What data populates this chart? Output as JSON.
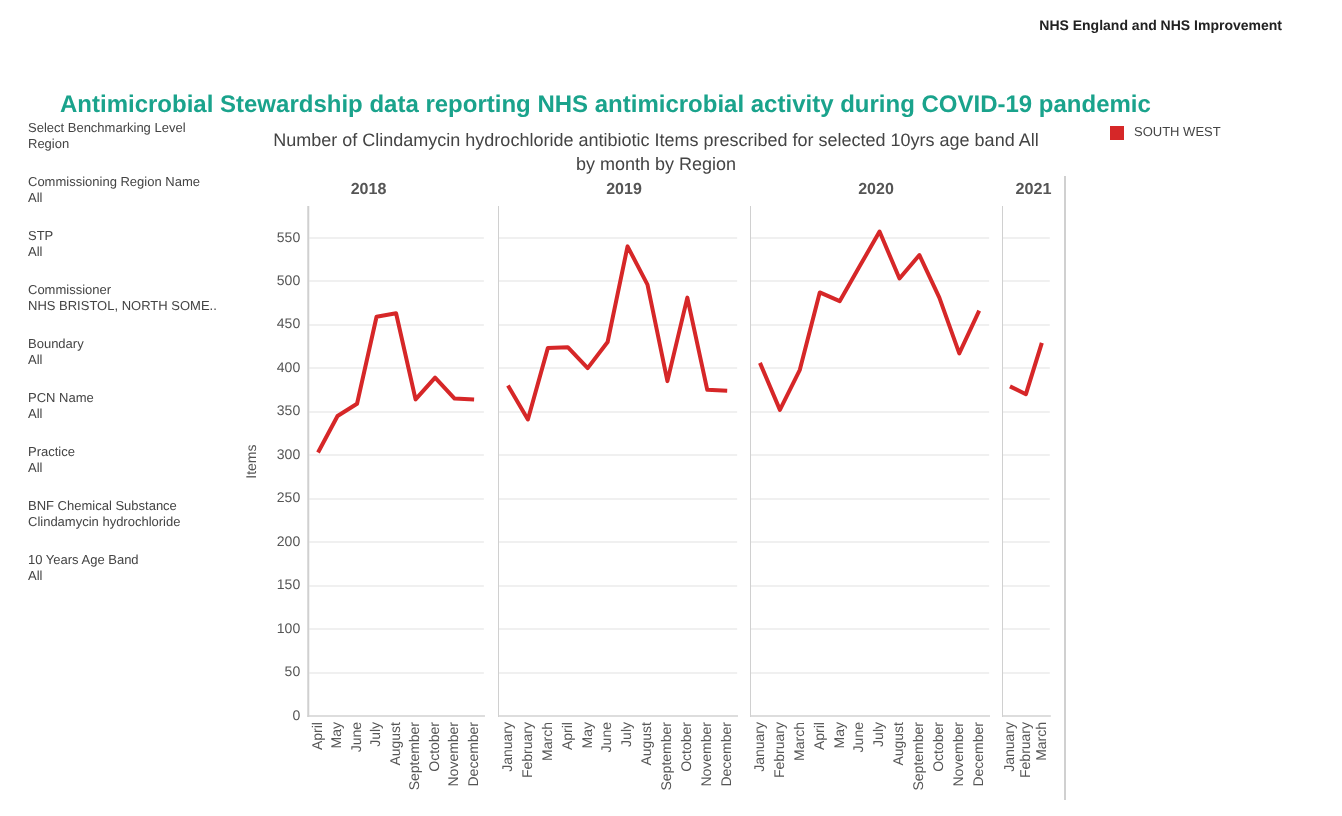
{
  "chart_data": [
    {
      "type": "line",
      "title": "2018",
      "ylabel": "Items",
      "categories": [
        "April",
        "May",
        "June",
        "July",
        "August",
        "September",
        "October",
        "November",
        "December"
      ],
      "series": [
        {
          "name": "SOUTH WEST",
          "color": "#d62728",
          "values": [
            303,
            345,
            359,
            459,
            463,
            364,
            389,
            365,
            364
          ]
        }
      ],
      "ylim": [
        0,
        585
      ],
      "yticks": [
        0,
        50,
        100,
        150,
        200,
        250,
        300,
        350,
        400,
        450,
        500,
        550
      ],
      "grid": "y",
      "legend": "top right",
      "annotations": [
        "NHS England and NHS Improvement",
        "Antimicrobial Stewardship data reporting NHS antimicrobial activity during COVID-19 pandemic",
        "Number of Clindamycin hydrochloride antibiotic Items prescribed for selected 10yrs age band All by month by Region",
        "Select Benchmarking Level",
        "Region",
        "Commissioning Region Name",
        "All",
        "STP",
        "All",
        "Commissioner",
        "NHS BRISTOL, NORTH SOME..",
        "Boundary",
        "All",
        "PCN Name",
        "All",
        "Practice",
        "All",
        "BNF Chemical Substance",
        "Clindamycin hydrochloride",
        "10 Years Age Band",
        "All"
      ]
    },
    {
      "type": "line",
      "title": "2019",
      "categories": [
        "January",
        "February",
        "March",
        "April",
        "May",
        "June",
        "July",
        "August",
        "September",
        "October",
        "November",
        "December"
      ],
      "series": [
        {
          "color": "#d62728",
          "values": [
            380,
            341,
            423,
            424,
            400,
            430,
            540,
            496,
            385,
            481,
            375,
            374
          ]
        }
      ],
      "ylim": [
        0,
        585
      ],
      "yticks": [
        0,
        50,
        100,
        150,
        200,
        250,
        300,
        350,
        400,
        450,
        500,
        550
      ],
      "grid": "y",
      "tick_labels": "x"
    },
    {
      "type": "line",
      "title": "2020",
      "categories": [
        "January",
        "February",
        "March",
        "April",
        "May",
        "June",
        "July",
        "August",
        "September",
        "October",
        "November",
        "December"
      ],
      "series": [
        {
          "color": "#d62728",
          "values": [
            406,
            352,
            398,
            487,
            477,
            517,
            557,
            503,
            530,
            481,
            417,
            466
          ]
        }
      ],
      "ylim": [
        0,
        585
      ],
      "yticks": [
        0,
        50,
        100,
        150,
        200,
        250,
        300,
        350,
        400,
        450,
        500,
        550
      ],
      "grid": "y",
      "tick_labels": "x"
    },
    {
      "type": "line",
      "title": "2021",
      "categories": [
        "January",
        "February",
        "March"
      ],
      "series": [
        {
          "color": "#d62728",
          "values": [
            379,
            370,
            429
          ]
        }
      ],
      "ylim": [
        0,
        585
      ],
      "yticks": [
        0,
        50,
        100,
        150,
        200,
        250,
        300,
        350,
        400,
        450,
        500,
        550
      ],
      "grid": "y",
      "tick_labels": "x"
    }
  ]
}
